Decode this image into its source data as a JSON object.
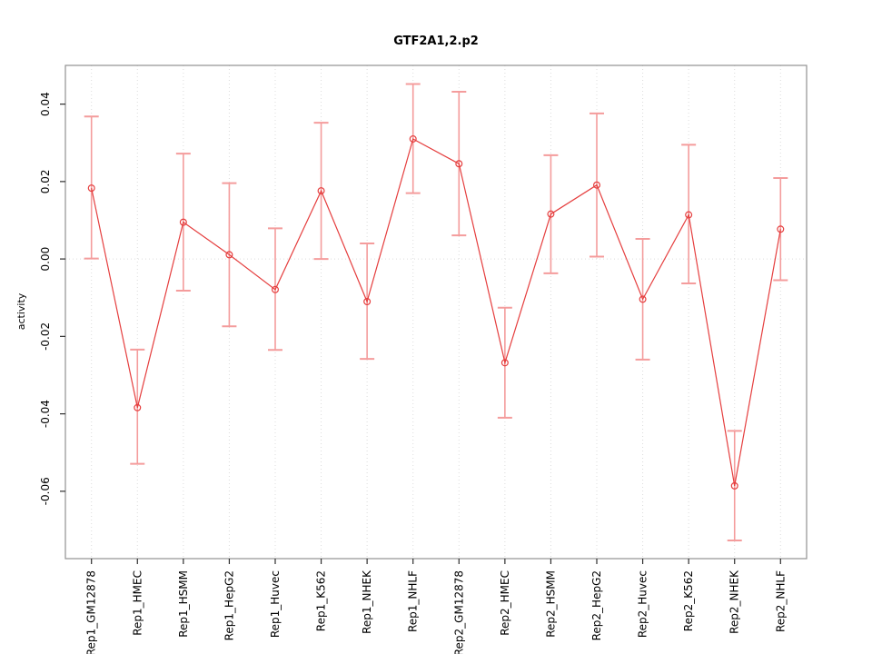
{
  "chart_data": {
    "type": "line",
    "title": "GTF2A1,2.p2",
    "xlabel": "",
    "ylabel": "activity",
    "ylim": [
      -0.0774,
      0.05
    ],
    "yticks": {
      "values": [
        -0.06,
        -0.04,
        -0.02,
        0.0,
        0.02,
        0.04
      ],
      "labels": [
        "-0.06",
        "-0.04",
        "-0.02",
        "0.00",
        "0.02",
        "0.04"
      ]
    },
    "categories": [
      "Rep1_GM12878",
      "Rep1_HMEC",
      "Rep1_HSMM",
      "Rep1_HepG2",
      "Rep1_Huvec",
      "Rep1_K562",
      "Rep1_NHEK",
      "Rep1_NHLF",
      "Rep2_GM12878",
      "Rep2_HMEC",
      "Rep2_HSMM",
      "Rep2_HepG2",
      "Rep2_Huvec",
      "Rep2_K562",
      "Rep2_NHEK",
      "Rep2_NHLF"
    ],
    "series": [
      {
        "name": "activity",
        "marker": "open-circle",
        "values": [
          0.0183,
          -0.0384,
          0.0095,
          0.0011,
          -0.0079,
          0.0176,
          -0.011,
          0.031,
          0.0246,
          -0.0268,
          0.0116,
          0.0191,
          -0.0104,
          0.0114,
          -0.0586,
          0.0077
        ],
        "err_high": [
          0.0368,
          -0.0234,
          0.0272,
          0.0196,
          0.0079,
          0.0352,
          0.004,
          0.0452,
          0.0432,
          -0.0126,
          0.0268,
          0.0376,
          0.0052,
          0.0295,
          -0.0444,
          0.0209
        ],
        "err_low": [
          0.0001,
          -0.0529,
          -0.0082,
          -0.0174,
          -0.0235,
          0.0,
          -0.0258,
          0.017,
          0.0061,
          -0.041,
          -0.0037,
          0.0006,
          -0.026,
          -0.0063,
          -0.0727,
          -0.0055
        ]
      }
    ],
    "grid": {
      "vertical": "one dotted line per category",
      "horizontal_at": [
        0.0
      ],
      "style": "dotted"
    },
    "legend_position": "none",
    "colors": {
      "line": "#e53e3e",
      "marker": "#e53e3e",
      "error_bar": "#f49c9c",
      "grid": "#dcdcdc",
      "zero_line": "#dcdcdc",
      "box": "#919191",
      "tick": "#2e2e2e",
      "text": "#000000",
      "background": "#ffffff"
    }
  }
}
